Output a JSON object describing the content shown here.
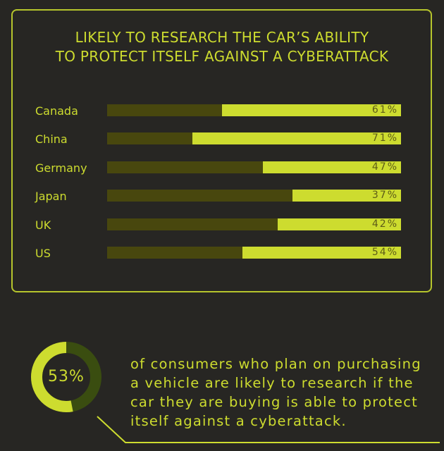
{
  "colors": {
    "background": "#272623",
    "accent": "#cddc2f",
    "bar_track": "#48470e",
    "value_text": "#5d5b18",
    "donut_remainder": "#3a4d10"
  },
  "chart_data": [
    {
      "type": "bar",
      "orientation": "horizontal",
      "title_lines": [
        "LIKELY TO RESEARCH THE CAR’S ABILITY",
        "TO PROTECT ITSELF AGAINST A CYBERATTACK"
      ],
      "categories": [
        "Canada",
        "China",
        "Germany",
        "Japan",
        "UK",
        "US"
      ],
      "values": [
        61,
        71,
        47,
        37,
        42,
        54
      ],
      "value_labels": [
        "61%",
        "71%",
        "47%",
        "37%",
        "42%",
        "54%"
      ],
      "xlim": [
        0,
        100
      ],
      "grid": false,
      "fill_anchor": "right"
    },
    {
      "type": "pie",
      "style": "donut",
      "values": [
        53,
        47
      ],
      "center_label": "53%"
    }
  ],
  "stat": {
    "lines": [
      "of consumers who plan on purchasing",
      "a vehicle are likely to research if the",
      "car they are buying is able to protect",
      "itself against a cyberattack."
    ]
  }
}
